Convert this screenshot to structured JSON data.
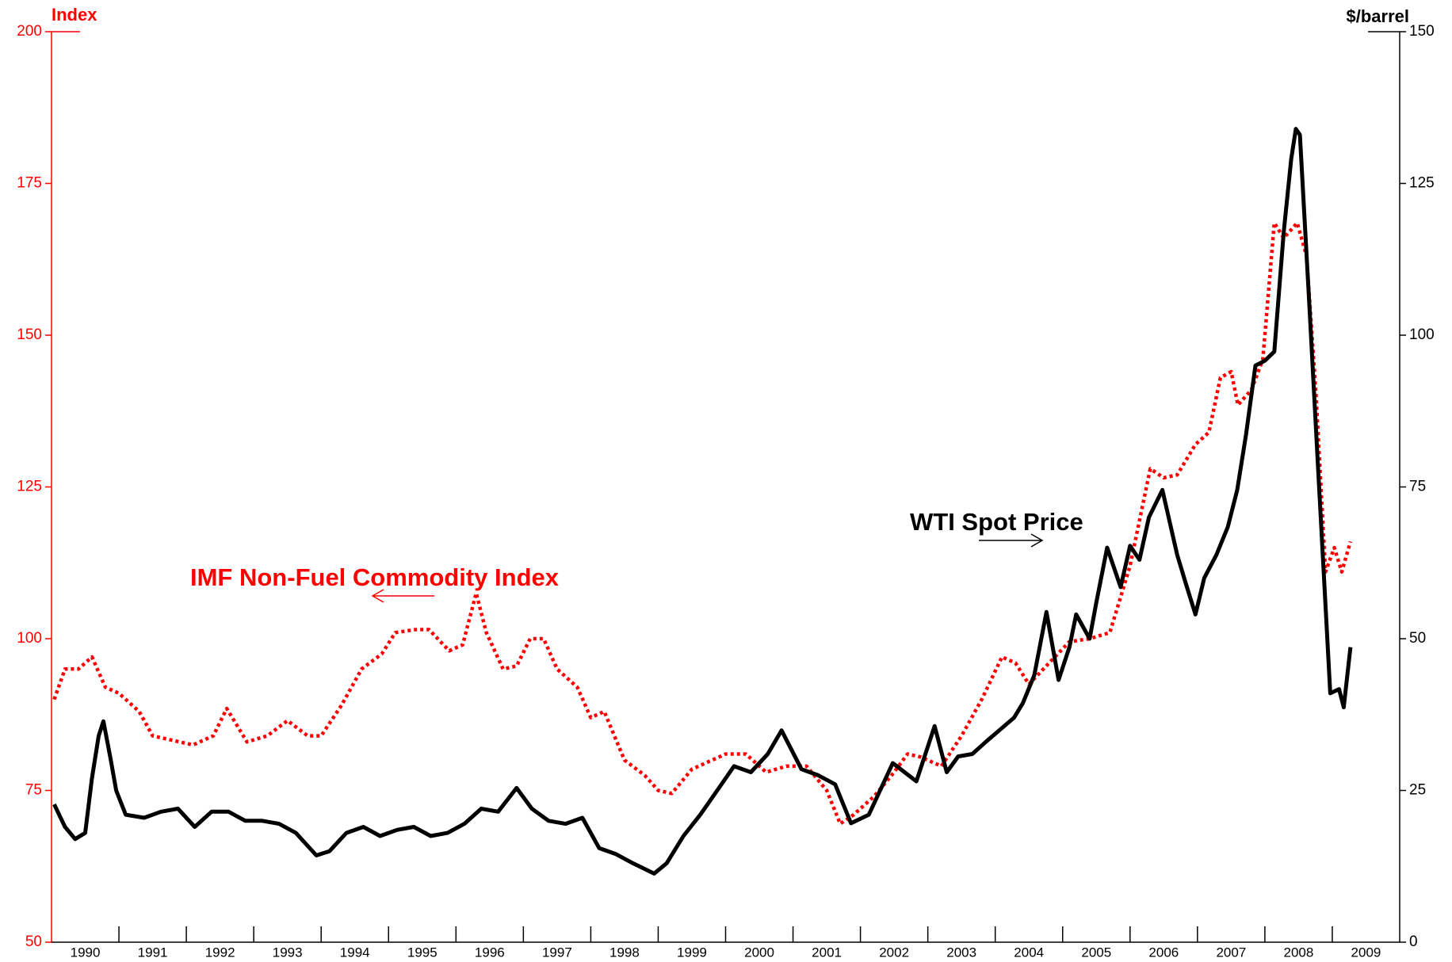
{
  "chart_data": {
    "type": "line",
    "ylabel": "Index",
    "y2label": "$/barrel",
    "xlim": [
      1990,
      2010
    ],
    "xticks": [
      {
        "value": 1990.5,
        "label": "1990"
      },
      {
        "value": 1991.5,
        "label": "1991"
      },
      {
        "value": 1992.5,
        "label": "1992"
      },
      {
        "value": 1993.5,
        "label": "1993"
      },
      {
        "value": 1994.5,
        "label": "1994"
      },
      {
        "value": 1995.5,
        "label": "1995"
      },
      {
        "value": 1996.5,
        "label": "1996"
      },
      {
        "value": 1997.5,
        "label": "1997"
      },
      {
        "value": 1998.5,
        "label": "1998"
      },
      {
        "value": 1999.5,
        "label": "1999"
      },
      {
        "value": 2000.5,
        "label": "2000"
      },
      {
        "value": 2001.5,
        "label": "2001"
      },
      {
        "value": 2002.5,
        "label": "2002"
      },
      {
        "value": 2003.5,
        "label": "2003"
      },
      {
        "value": 2004.5,
        "label": "2004"
      },
      {
        "value": 2005.5,
        "label": "2005"
      },
      {
        "value": 2006.5,
        "label": "2006"
      },
      {
        "value": 2007.5,
        "label": "2007"
      },
      {
        "value": 2008.5,
        "label": "2008"
      },
      {
        "value": 2009.5,
        "label": "2009"
      }
    ],
    "ylim": [
      50,
      200
    ],
    "yticks": [
      50,
      75,
      100,
      125,
      150,
      175,
      200
    ],
    "ycolor": "#ff0000",
    "y2lim": [
      0,
      150
    ],
    "y2ticks": [
      0,
      25,
      50,
      75,
      100,
      125,
      150
    ],
    "y2color": "#000000",
    "series": [
      {
        "name": "IMF Non-Fuel Commodity Index",
        "color": "#ff0000",
        "line_style": "dotted",
        "axis": "y",
        "x": [
          1990.04,
          1990.2,
          1990.4,
          1990.6,
          1990.8,
          1991.0,
          1991.3,
          1991.5,
          1991.9,
          1992.1,
          1992.4,
          1992.6,
          1992.9,
          1993.2,
          1993.5,
          1993.8,
          1994.0,
          1994.3,
          1994.6,
          1994.9,
          1995.1,
          1995.4,
          1995.6,
          1995.9,
          1996.1,
          1996.3,
          1996.45,
          1996.7,
          1996.9,
          1997.1,
          1997.3,
          1997.5,
          1997.8,
          1998.0,
          1998.2,
          1998.5,
          1998.8,
          1999.0,
          1999.2,
          1999.5,
          1999.8,
          2000.0,
          2000.3,
          2000.6,
          2000.9,
          2001.2,
          2001.5,
          2001.7,
          2001.9,
          2002.2,
          2002.5,
          2002.7,
          2002.9,
          2003.2,
          2003.5,
          2003.8,
          2004.1,
          2004.3,
          2004.5,
          2004.8,
          2005.1,
          2005.4,
          2005.7,
          2006.0,
          2006.3,
          2006.5,
          2006.7,
          2006.97,
          2007.17,
          2007.34,
          2007.5,
          2007.6,
          2007.8,
          2007.97,
          2008.14,
          2008.28,
          2008.48,
          2008.62,
          2008.76,
          2008.9,
          2009.03,
          2009.14,
          2009.27
        ],
        "values": [
          90,
          95,
          95,
          97,
          92,
          91,
          88,
          84,
          83,
          82.5,
          84,
          88.5,
          83,
          84,
          86.5,
          84,
          84,
          89,
          95,
          97.5,
          101,
          101.5,
          101.5,
          98,
          99,
          107.5,
          101,
          95,
          95.5,
          100,
          100,
          95,
          92,
          87,
          88,
          80,
          77.5,
          75,
          74.5,
          78.5,
          80,
          81,
          81,
          78,
          79,
          79,
          75,
          69.5,
          71,
          74,
          78,
          81,
          80.5,
          79,
          84,
          90,
          97,
          96,
          92.5,
          96,
          99.5,
          100,
          101,
          112,
          128,
          126.5,
          127,
          132,
          134,
          143,
          144,
          138.5,
          141,
          146,
          168.5,
          166,
          168.5,
          163,
          140,
          111,
          115,
          111,
          116
        ]
      },
      {
        "name": "WTI Spot Price",
        "color": "#000000",
        "line_style": "solid",
        "axis": "y2",
        "x": [
          1990.04,
          1990.2,
          1990.35,
          1990.5,
          1990.6,
          1990.7,
          1990.77,
          1990.88,
          1990.96,
          1991.1,
          1991.375,
          1991.625,
          1991.875,
          1992.125,
          1992.375,
          1992.625,
          1992.875,
          1993.125,
          1993.375,
          1993.625,
          1993.93,
          1994.125,
          1994.375,
          1994.625,
          1994.875,
          1995.125,
          1995.375,
          1995.625,
          1995.875,
          1996.125,
          1996.375,
          1996.625,
          1996.9,
          1997.125,
          1997.375,
          1997.625,
          1997.875,
          1998.125,
          1998.375,
          1998.625,
          1998.94,
          1999.125,
          1999.375,
          1999.625,
          1999.875,
          2000.125,
          2000.375,
          2000.625,
          2000.83,
          2001.125,
          2001.375,
          2001.625,
          2001.86,
          2002.125,
          2002.48,
          2002.83,
          2003.1,
          2003.28,
          2003.45,
          2003.66,
          2003.86,
          2004.07,
          2004.28,
          2004.41,
          2004.58,
          2004.76,
          2004.94,
          2005.1,
          2005.2,
          2005.4,
          2005.5,
          2005.66,
          2005.86,
          2006.0,
          2006.14,
          2006.28,
          2006.48,
          2006.7,
          2006.83,
          2006.97,
          2007.1,
          2007.28,
          2007.45,
          2007.59,
          2007.72,
          2007.86,
          2008.0,
          2008.14,
          2008.28,
          2008.39,
          2008.46,
          2008.52,
          2008.66,
          2008.8,
          2008.97,
          2009.1,
          2009.17,
          2009.27
        ],
        "values": [
          22.7,
          19,
          17,
          18,
          27,
          34,
          36.4,
          30,
          25,
          21,
          20.5,
          21.5,
          22,
          19,
          21.5,
          21.5,
          20,
          20,
          19.5,
          18,
          14.3,
          15,
          18,
          19,
          17.5,
          18.5,
          19,
          17.5,
          18,
          19.5,
          22,
          21.5,
          25.4,
          22,
          20,
          19.5,
          20.5,
          15.5,
          14.5,
          13,
          11.3,
          13,
          17.5,
          21,
          25,
          29,
          28,
          31,
          34.9,
          28.5,
          27.5,
          26,
          19.6,
          21,
          29.5,
          26.5,
          35.6,
          28,
          30.6,
          31,
          33,
          35,
          37,
          39.4,
          44,
          54.4,
          43.2,
          48.6,
          54,
          50,
          56,
          65,
          58.5,
          65.3,
          63,
          70,
          74.5,
          63.8,
          59,
          54,
          60,
          63.8,
          68.4,
          74.5,
          83.6,
          95,
          95.8,
          97.3,
          117,
          129,
          134,
          133,
          105,
          76,
          41,
          41.7,
          38.7,
          48.6
        ]
      }
    ]
  }
}
